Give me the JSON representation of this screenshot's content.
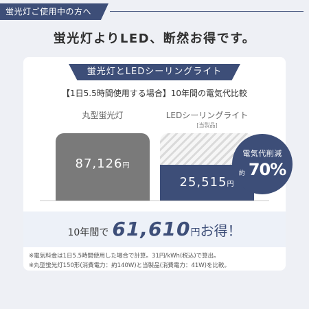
{
  "header": {
    "tag": "蛍光灯ご使用中の方へ"
  },
  "headline": "蛍光灯よりLED、断然お得です。",
  "card": {
    "title": "蛍光灯とLEDシーリングライト",
    "subtitle": "【1日5.5時間使用する場合】10年間の電気代比較",
    "left": {
      "label": "丸型蛍光灯",
      "value": "87,126",
      "yen": "円"
    },
    "right": {
      "label": "LEDシーリングライト",
      "sublabel": "[当製品]",
      "value": "25,515",
      "yen": "円"
    },
    "badge": {
      "top": "電気代削減",
      "prefix": "約",
      "percent": "70%"
    },
    "savings": {
      "prefix": "10年間で",
      "amount": "61,610",
      "yen": "円",
      "suffix": "お得！"
    },
    "notes": [
      "※電気料金は1日5.5時間使用した場合で計算。31円/kWh(税込)で算出。",
      "※丸型蛍光灯150形(消費電力：約140W)と当製品(消費電力：41W)を比較。"
    ]
  },
  "colors": {
    "navy": "#3d4e78",
    "gray_bar": "#7a7a7a",
    "background": "#eef0f5"
  }
}
